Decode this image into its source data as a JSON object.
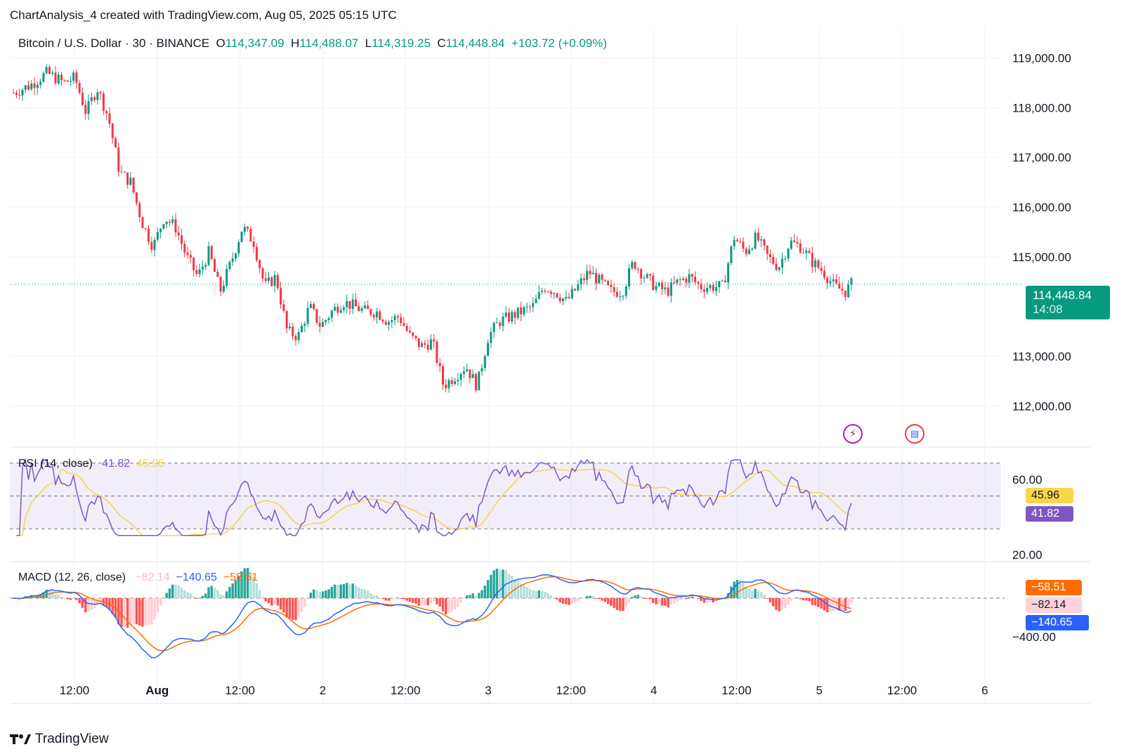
{
  "header": {
    "title": "ChartAnalysis_4 created with TradingView.com, Aug 05, 2025 05:15 UTC"
  },
  "symbol": {
    "name": "Bitcoin / U.S. Dollar · 30 · BINANCE",
    "o_label": "O",
    "open": "114,347.09",
    "h_label": "H",
    "high": "114,488.07",
    "l_label": "L",
    "low": "114,319.25",
    "c_label": "C",
    "close": "114,448.84",
    "change": "+103.72 (+0.09%)"
  },
  "last_price": {
    "value": "114,448.84",
    "countdown": "14:08"
  },
  "rsi": {
    "label": "RSI (14, close)",
    "value": "41.82",
    "ma": "45.96",
    "levels": {
      "upper": "60.00",
      "lower": "20.00"
    }
  },
  "macd": {
    "label": "MACD (12, 26, close)",
    "hist": "−82.14",
    "macd": "−140.65",
    "signal": "−58.51",
    "level": "−400.00"
  },
  "footer": {
    "brand": "TradingView"
  },
  "colors": {
    "up": "#089981",
    "down": "#f23645",
    "rsi": "#7e57c2",
    "rsi_ma": "#f7d64a",
    "macd": "#2962ff",
    "signal": "#ff6d00"
  },
  "chart_data": {
    "type": "candlestick",
    "price_axis": {
      "ticks": [
        "119,000.00",
        "118,000.00",
        "117,000.00",
        "116,000.00",
        "115,000.00",
        "113,000.00",
        "112,000.00"
      ],
      "ylim": [
        111200,
        119600
      ]
    },
    "time_axis": {
      "ticks": [
        "12:00",
        "Aug",
        "12:00",
        "2",
        "12:00",
        "3",
        "12:00",
        "4",
        "12:00",
        "5",
        "12:00",
        "6"
      ]
    },
    "close_path": [
      [
        0,
        118300
      ],
      [
        3,
        118450
      ],
      [
        6,
        118700
      ],
      [
        9,
        118500
      ],
      [
        11,
        118600
      ],
      [
        13,
        117900
      ],
      [
        15,
        118400
      ],
      [
        17,
        117800
      ],
      [
        19,
        116700
      ],
      [
        21,
        116500
      ],
      [
        23,
        115700
      ],
      [
        25,
        115200
      ],
      [
        27,
        115800
      ],
      [
        29,
        115600
      ],
      [
        31,
        115000
      ],
      [
        33,
        114600
      ],
      [
        35,
        115100
      ],
      [
        37,
        114300
      ],
      [
        39,
        114900
      ],
      [
        41,
        115600
      ],
      [
        43,
        115300
      ],
      [
        45,
        114400
      ],
      [
        47,
        114600
      ],
      [
        49,
        113500
      ],
      [
        51,
        113400
      ],
      [
        53,
        114000
      ],
      [
        55,
        113600
      ],
      [
        57,
        113900
      ],
      [
        59,
        114100
      ],
      [
        61,
        114000
      ],
      [
        63,
        113900
      ],
      [
        65,
        113900
      ],
      [
        67,
        113700
      ],
      [
        69,
        113800
      ],
      [
        71,
        113400
      ],
      [
        73,
        113200
      ],
      [
        75,
        113300
      ],
      [
        77,
        112400
      ],
      [
        79,
        112600
      ],
      [
        81,
        112800
      ],
      [
        83,
        112400
      ],
      [
        85,
        113400
      ],
      [
        87,
        113700
      ],
      [
        89,
        113800
      ],
      [
        91,
        113900
      ],
      [
        93,
        114000
      ],
      [
        95,
        114400
      ],
      [
        97,
        114300
      ],
      [
        99,
        114100
      ],
      [
        101,
        114400
      ],
      [
        103,
        114700
      ],
      [
        105,
        114500
      ],
      [
        107,
        114300
      ],
      [
        109,
        114300
      ],
      [
        111,
        114900
      ],
      [
        113,
        114600
      ],
      [
        115,
        114400
      ],
      [
        117,
        114300
      ],
      [
        119,
        114500
      ],
      [
        121,
        114600
      ],
      [
        123,
        114400
      ],
      [
        125,
        114400
      ],
      [
        127,
        114400
      ],
      [
        129,
        115400
      ],
      [
        131,
        115100
      ],
      [
        133,
        115400
      ],
      [
        135,
        115000
      ],
      [
        137,
        114800
      ],
      [
        139,
        115300
      ],
      [
        141,
        115200
      ],
      [
        143,
        114900
      ],
      [
        145,
        114700
      ],
      [
        147,
        114400
      ],
      [
        149,
        114300
      ],
      [
        150,
        114449
      ]
    ],
    "rsi_levels": [
      70,
      50,
      30
    ],
    "rsi_ylim": [
      15,
      75
    ]
  }
}
